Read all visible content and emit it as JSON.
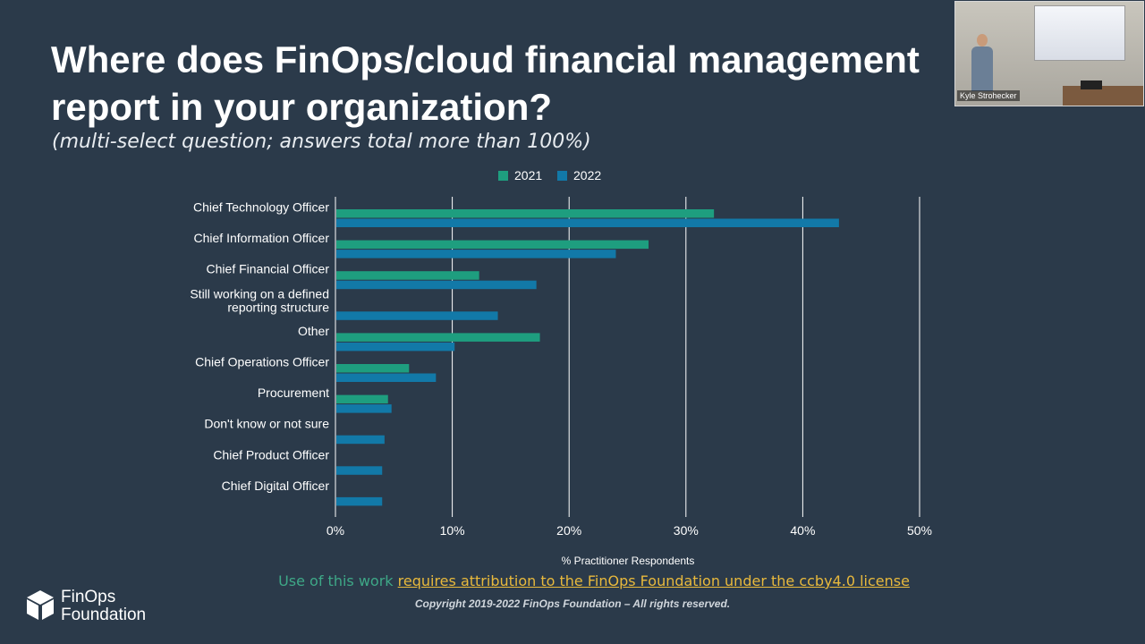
{
  "slide": {
    "title": "Where does FinOps/cloud financial management report in your organization?",
    "subtitle": "(multi-select question; answers total more than 100%)"
  },
  "webcam": {
    "name": "Kyle Strohecker"
  },
  "chart_data": {
    "type": "bar",
    "orientation": "horizontal",
    "categories": [
      "Chief Technology Officer",
      "Chief Information Officer",
      "Chief Financial Officer",
      "Still working on a defined reporting structure",
      "Other",
      "Chief Operations Officer",
      "Procurement",
      "Don't know or not sure",
      "Chief Product Officer",
      "Chief Digital Officer"
    ],
    "category_lines": [
      [
        "Chief Technology Officer"
      ],
      [
        "Chief Information Officer"
      ],
      [
        "Chief Financial Officer"
      ],
      [
        "Still working on a defined",
        "reporting structure"
      ],
      [
        "Other"
      ],
      [
        "Chief Operations Officer"
      ],
      [
        "Procurement"
      ],
      [
        "Don't know or not sure"
      ],
      [
        "Chief Product Officer"
      ],
      [
        "Chief Digital Officer"
      ]
    ],
    "series": [
      {
        "name": "2021",
        "color": "#1e9e7f",
        "values": [
          32.4,
          26.8,
          12.3,
          null,
          17.5,
          6.3,
          4.5,
          null,
          null,
          null
        ]
      },
      {
        "name": "2022",
        "color": "#1279a8",
        "values": [
          43.1,
          24.0,
          17.2,
          13.9,
          10.2,
          8.6,
          4.8,
          4.2,
          4.0,
          4.0
        ]
      }
    ],
    "xlim": [
      0,
      50
    ],
    "xticks": [
      "0%",
      "10%",
      "20%",
      "30%",
      "40%",
      "50%"
    ],
    "xlabel": "% Practitioner Respondents",
    "grid": true,
    "legend_position": "top"
  },
  "footer": {
    "attribution_text": "Use of this work",
    "attribution_link": "requires attribution to the FinOps Foundation under the ccby4.0 license",
    "copyright": "Copyright 2019-2022 FinOps Foundation – All rights reserved.",
    "logo_line1": "FinOps",
    "logo_line2": "Foundation"
  }
}
